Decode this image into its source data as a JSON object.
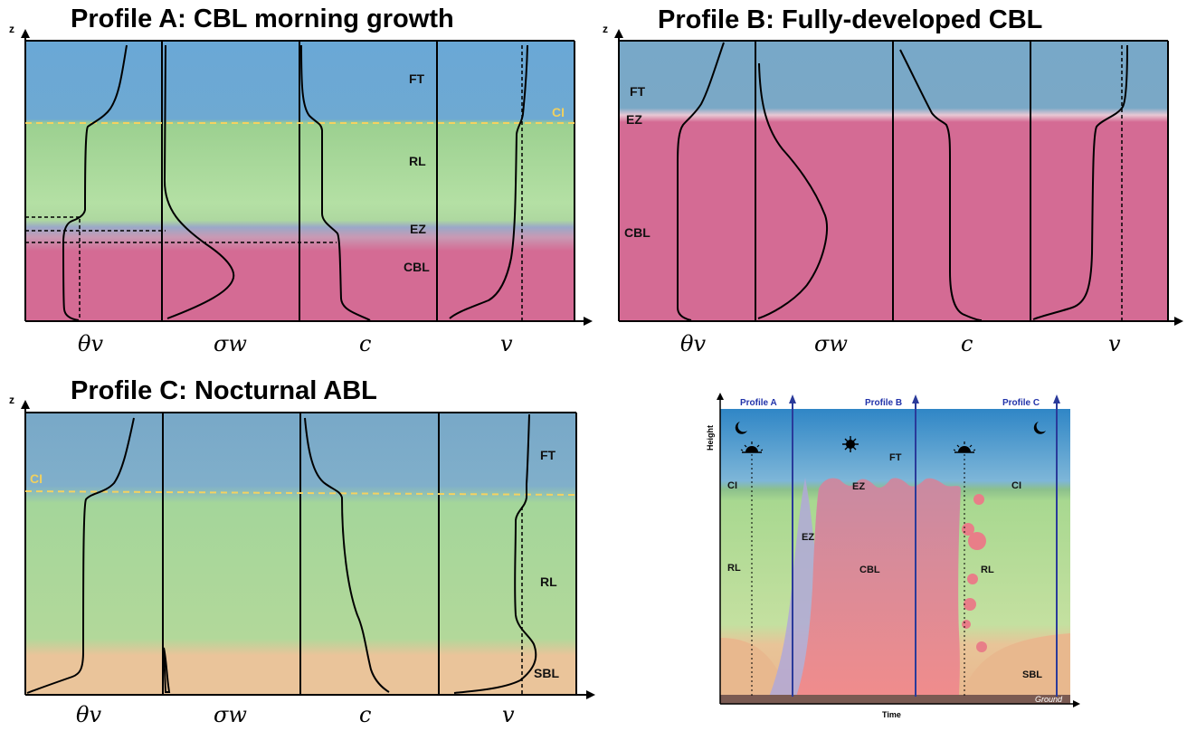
{
  "profile_a": {
    "title": "Profile A: CBL morning growth",
    "z_label": "z",
    "layer_labels": {
      "ft": "FT",
      "ci": "CI",
      "rl": "RL",
      "ez": "EZ",
      "cbl": "CBL"
    },
    "variables": {
      "theta": "θv",
      "sigma": "σw",
      "c": "c",
      "v": "v"
    }
  },
  "profile_b": {
    "title": "Profile B: Fully-developed CBL",
    "z_label": "z",
    "layer_labels": {
      "ft": "FT",
      "ez": "EZ",
      "cbl": "CBL"
    },
    "variables": {
      "theta": "θv",
      "sigma": "σw",
      "c": "c",
      "v": "v"
    }
  },
  "profile_c": {
    "title": "Profile C: Nocturnal ABL",
    "z_label": "z",
    "layer_labels": {
      "ft": "FT",
      "ci": "CI",
      "rl": "RL",
      "sbl": "SBL"
    },
    "variables": {
      "theta": "θv",
      "sigma": "σw",
      "c": "c",
      "v": "v"
    }
  },
  "timeline": {
    "profile_markers": [
      "Profile A",
      "Profile B",
      "Profile C"
    ],
    "y_label": "Height",
    "x_label": "Time",
    "ground_label": "Ground",
    "labels": {
      "ft": "FT",
      "ci_left": "CI",
      "ci_right": "CI",
      "ez_top": "EZ",
      "ez_left": "EZ",
      "rl_left": "RL",
      "rl_right": "RL",
      "cbl": "CBL",
      "sbl": "SBL"
    },
    "icons": [
      "moon-icon",
      "sunrise-icon",
      "sun-icon",
      "sunset-icon",
      "moon-icon"
    ]
  },
  "colors": {
    "ft_blue": "#6aa8d6",
    "rl_green": "#a8d890",
    "cbl_pink": "#d46b94",
    "sbl_tan": "#eac49a",
    "ci_yellow": "#f4d260",
    "profile_blue": "#2a3a9a"
  }
}
